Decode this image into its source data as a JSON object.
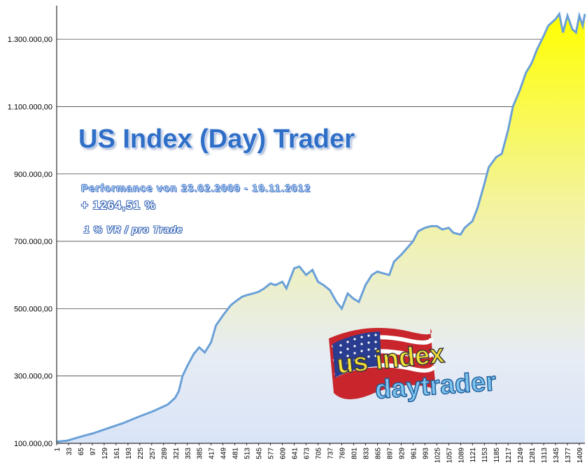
{
  "chart_data": {
    "type": "area",
    "annotations": {
      "title": "US Index (Day) Trader",
      "performance": "Performance  von  23.02.2009 - 19.11.2012",
      "gain": "+ 1264,51 %",
      "risk": "1 % VR / pro Trade"
    },
    "y_tick_labels": [
      "100.000,00",
      "300.000,00",
      "500.000,00",
      "700.000,00",
      "900.000,00",
      "1.100.000,00",
      "1.300.000,00"
    ],
    "y_ticks": [
      100000,
      300000,
      500000,
      700000,
      900000,
      1100000,
      1300000
    ],
    "ylim": [
      100000,
      1400000
    ],
    "x_tick_labels": [
      "1",
      "33",
      "65",
      "97",
      "129",
      "161",
      "193",
      "225",
      "257",
      "289",
      "321",
      "353",
      "385",
      "417",
      "449",
      "481",
      "513",
      "545",
      "577",
      "609",
      "641",
      "673",
      "705",
      "737",
      "769",
      "801",
      "833",
      "865",
      "897",
      "929",
      "961",
      "993",
      "1025",
      "1057",
      "1089",
      "1121",
      "1153",
      "1185",
      "1217",
      "1249",
      "1281",
      "1313",
      "1345",
      "1377",
      "1409"
    ],
    "xlim": [
      1,
      1424
    ],
    "grid": "horizontal",
    "legend": "none",
    "series": [
      {
        "x": [
          1,
          30,
          60,
          100,
          140,
          180,
          220,
          260,
          300,
          320,
          330,
          340,
          353,
          370,
          385,
          400,
          417,
          430,
          449,
          470,
          481,
          500,
          513,
          530,
          545,
          560,
          577,
          590,
          609,
          620,
          641,
          655,
          673,
          690,
          705,
          720,
          737,
          755,
          769,
          785,
          800,
          815,
          833,
          850,
          865,
          880,
          897,
          910,
          929,
          945,
          961,
          975,
          993,
          1010,
          1025,
          1040,
          1057,
          1070,
          1089,
          1100,
          1121,
          1135,
          1153,
          1165,
          1185,
          1200,
          1217,
          1230,
          1249,
          1265,
          1281,
          1295,
          1313,
          1325,
          1345,
          1355,
          1365,
          1377,
          1390,
          1400,
          1409,
          1418,
          1424
        ],
        "values": [
          105000,
          108000,
          118000,
          130000,
          145000,
          160000,
          178000,
          195000,
          215000,
          235000,
          255000,
          300000,
          330000,
          365000,
          385000,
          370000,
          400000,
          450000,
          480000,
          510000,
          520000,
          535000,
          540000,
          545000,
          550000,
          560000,
          575000,
          570000,
          580000,
          560000,
          620000,
          625000,
          600000,
          615000,
          580000,
          570000,
          555000,
          520000,
          500000,
          545000,
          530000,
          520000,
          570000,
          600000,
          610000,
          605000,
          600000,
          640000,
          660000,
          680000,
          700000,
          730000,
          740000,
          745000,
          745000,
          735000,
          740000,
          725000,
          720000,
          740000,
          760000,
          800000,
          870000,
          920000,
          950000,
          960000,
          1030000,
          1100000,
          1150000,
          1200000,
          1230000,
          1270000,
          1310000,
          1340000,
          1360000,
          1375000,
          1320000,
          1370000,
          1330000,
          1320000,
          1370000,
          1340000,
          1375000
        ],
        "color": "#5b9bd5"
      }
    ],
    "colors": {
      "fill_top": "#ffff00",
      "fill_bottom": "#dde8fa",
      "line": "#6aa0d8",
      "grid": "#444444"
    }
  },
  "logo": {
    "text_top": "us index",
    "text_bottom": "daytrader"
  }
}
